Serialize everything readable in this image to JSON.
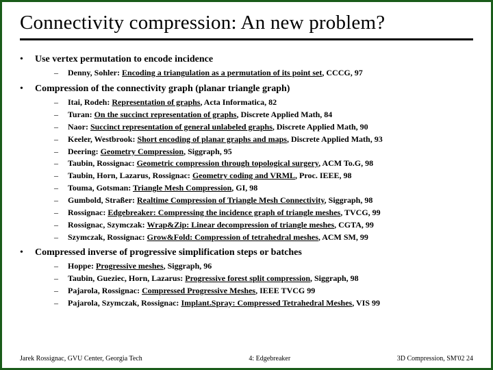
{
  "title": "Connectivity compression: An new problem?",
  "sections": [
    {
      "heading": "Use vertex permutation to encode incidence",
      "refs": [
        {
          "authors": "Denny, Sohler:",
          "title": "Encoding a triangulation as a permutation of its point set",
          "venue": ", CCCG, 97"
        }
      ]
    },
    {
      "heading": "Compression of the connectivity graph (planar triangle graph)",
      "refs": [
        {
          "authors": "Itai, Rodeh:",
          "title": "Representation of graphs",
          "venue": ", Acta Informatica, 82"
        },
        {
          "authors": "Turan:",
          "title": "On the succinct representation of graphs",
          "venue": ", Discrete Applied Math, 84"
        },
        {
          "authors": "Naor:",
          "title": "Succinct representation of general unlabeled graphs",
          "venue": ", Discrete Applied Math, 90"
        },
        {
          "authors": "Keeler, Westbrook:",
          "title": "Short encoding of planar graphs and maps",
          "venue": ", Discrete Applied Math, 93"
        },
        {
          "authors": "Deering:",
          "title": "Geometry Compression",
          "venue": ", Siggraph, 95"
        },
        {
          "authors": "Taubin, Rossignac:",
          "title": "Geometric compression through topological surgery",
          "venue": ", ACM To.G, 98"
        },
        {
          "authors": "Taubin, Horn, Lazarus, Rossignac:",
          "title": "Geometry coding and VRML",
          "venue": ", Proc. IEEE, 98"
        },
        {
          "authors": "Touma, Gotsman:",
          "title": "Triangle Mesh Compression",
          "venue": ", GI, 98"
        },
        {
          "authors": "Gumbold, Straßer:",
          "title": "Realtime Compression of Triangle Mesh Connectivity",
          "venue": ",  Siggraph, 98"
        },
        {
          "authors": "Rossignac:",
          "title": "Edgebreaker: Compressing the incidence graph of triangle meshes",
          "venue": ", TVCG, 99"
        },
        {
          "authors": "Rossignac, Szymczak:",
          "title": "Wrap&Zip: Linear decompression of triangle meshes",
          "venue": ", CGTA, 99"
        },
        {
          "authors": "Szymczak, Rossignac:",
          "title": "Grow&Fold: Compression of tetrahedral meshes",
          "venue": ", ACM SM, 99"
        }
      ]
    },
    {
      "heading": "Compressed inverse of progressive simplification steps or batches",
      "refs": [
        {
          "authors": "Hoppe:",
          "title": "Progressive meshes",
          "venue": ", Siggraph, 96"
        },
        {
          "authors": "Taubin, Gueziec, Horn, Lazarus:",
          "title": "Progressive forest split compression",
          "venue": ",  Siggraph, 98"
        },
        {
          "authors": "Pajarola, Rossignac:",
          "title": "Compressed Progressive Meshes",
          "venue": ", IEEE TVCG 99"
        },
        {
          "authors": "Pajarola, Szymczak, Rossignac:",
          "title": "Implant.Spray: Compressed Tetrahedral Meshes",
          "venue": ", VIS 99"
        }
      ]
    }
  ],
  "footer": {
    "left": "Jarek Rossignac, GVU Center, Georgia Tech",
    "center": "4: Edgebreaker",
    "right": "3D Compression, SM'02  24"
  }
}
